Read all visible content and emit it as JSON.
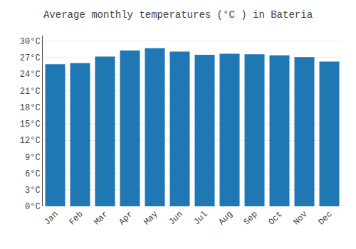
{
  "chart_data": {
    "type": "bar",
    "title": "Average monthly temperatures (°C ) in Bateria",
    "categories": [
      "Jan",
      "Feb",
      "Mar",
      "Apr",
      "May",
      "Jun",
      "Jul",
      "Aug",
      "Sep",
      "Oct",
      "Nov",
      "Dec"
    ],
    "values": [
      25.8,
      26.0,
      27.2,
      28.3,
      28.7,
      28.1,
      27.5,
      27.7,
      27.6,
      27.4,
      27.1,
      26.3
    ],
    "ylim": [
      0,
      31
    ],
    "yticks": [
      {
        "value": 0,
        "label": "0°C"
      },
      {
        "value": 3,
        "label": "3°C"
      },
      {
        "value": 6,
        "label": "6°C"
      },
      {
        "value": 9,
        "label": "9°C"
      },
      {
        "value": 12,
        "label": "12°C"
      },
      {
        "value": 15,
        "label": "15°C"
      },
      {
        "value": 18,
        "label": "18°C"
      },
      {
        "value": 21,
        "label": "21°C"
      },
      {
        "value": 24,
        "label": "24°C"
      },
      {
        "value": 27,
        "label": "27°C"
      },
      {
        "value": 30,
        "label": "30°C"
      }
    ],
    "grid": true
  }
}
